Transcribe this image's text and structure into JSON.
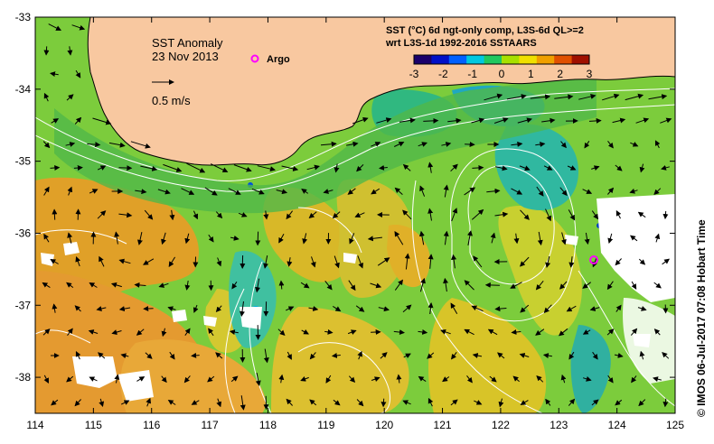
{
  "title": {
    "line1": "SST Anomaly",
    "line2": "23 Nov 2013"
  },
  "legend": {
    "argo_label": "Argo",
    "velocity_label": "0.5 m/s",
    "argo_color": "#ff00ff"
  },
  "colorbar": {
    "title_line1": "SST (°C) 6d ngt-only comp, L3S-6d QL>=2",
    "title_line2": "wrt L3S-1d 1992-2016 SSTAARS",
    "ticks": [
      "-3",
      "-2",
      "-1",
      "0",
      "1",
      "2",
      "3"
    ],
    "range": [
      -3,
      3
    ],
    "colors": [
      "#1a006b",
      "#0010c8",
      "#0060ff",
      "#00c8e0",
      "#20c860",
      "#a8e000",
      "#f0e000",
      "#f0a000",
      "#e05000",
      "#a01000"
    ]
  },
  "axes": {
    "x_ticks": [
      "114",
      "115",
      "116",
      "117",
      "118",
      "119",
      "120",
      "121",
      "122",
      "123",
      "124",
      "125"
    ],
    "y_ticks": [
      "-33",
      "-34",
      "-35",
      "-36",
      "-37",
      "-38"
    ],
    "lon_range": [
      114,
      125
    ],
    "lat_range": [
      -33,
      -38.5
    ]
  },
  "credit": "© IMOS 06-Jul-2017 07:08 Hobart Time",
  "colors": {
    "land": "#f8c8a0",
    "no_data": "#ffffff",
    "ocean_base": "#7ccc3c",
    "contour": "#ffffff"
  }
}
